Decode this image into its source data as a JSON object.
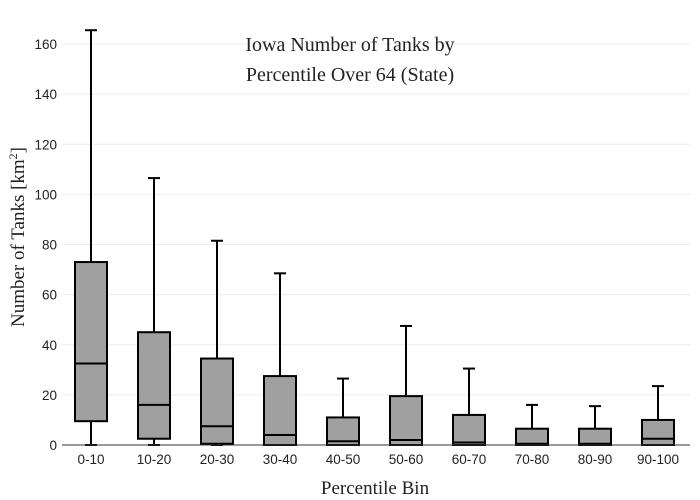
{
  "chart_data": {
    "type": "box",
    "title_lines": [
      "Iowa Number of Tanks by",
      "Percentile Over 64 (State)"
    ],
    "xlabel": "Percentile Bin",
    "ylabel_main": "Number of Tanks  [km",
    "ylabel_sup": "2",
    "ylabel_end": "]",
    "ylim": [
      0,
      170
    ],
    "yticks": [
      0,
      20,
      40,
      60,
      80,
      100,
      120,
      140,
      160
    ],
    "grid": true,
    "categories": [
      "0-10",
      "10-20",
      "20-30",
      "30-40",
      "40-50",
      "50-60",
      "60-70",
      "70-80",
      "80-90",
      "90-100"
    ],
    "boxes": [
      {
        "min": 0,
        "q1": 9.5,
        "median": 32.5,
        "q3": 73,
        "max": 165.5
      },
      {
        "min": 0,
        "q1": 2.5,
        "median": 16,
        "q3": 45,
        "max": 106.5
      },
      {
        "min": 0,
        "q1": 0.5,
        "median": 7.5,
        "q3": 34.5,
        "max": 81.5
      },
      {
        "min": 0,
        "q1": 0,
        "median": 4,
        "q3": 27.5,
        "max": 68.5
      },
      {
        "min": 0,
        "q1": 0,
        "median": 1.5,
        "q3": 11,
        "max": 26.5
      },
      {
        "min": 0,
        "q1": 0,
        "median": 2,
        "q3": 19.5,
        "max": 47.5
      },
      {
        "min": 0,
        "q1": 0,
        "median": 1,
        "q3": 12,
        "max": 30.5
      },
      {
        "min": 0,
        "q1": 0,
        "median": 0.5,
        "q3": 6.5,
        "max": 16
      },
      {
        "min": 0,
        "q1": 0,
        "median": 0.5,
        "q3": 6.5,
        "max": 15.5
      },
      {
        "min": 0,
        "q1": 0,
        "median": 2.5,
        "q3": 10,
        "max": 23.5
      }
    ]
  }
}
